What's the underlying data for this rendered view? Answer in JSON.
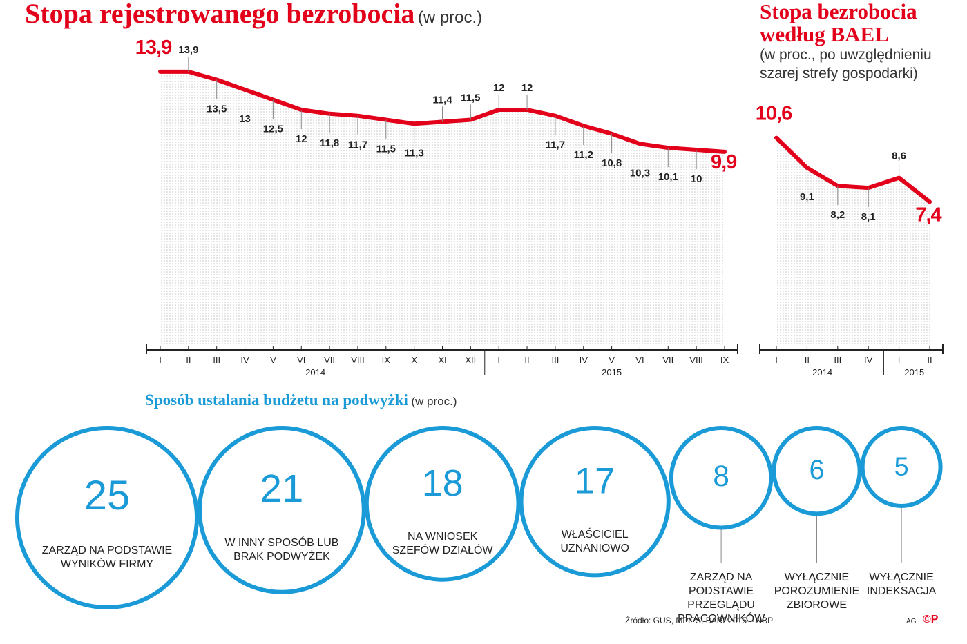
{
  "chart_data": [
    {
      "type": "line",
      "title": "Stopa rejestrowanego bezrobocia",
      "subtitle": "(w proc.)",
      "color": "#e2001a",
      "categories": [
        "I",
        "II",
        "III",
        "IV",
        "V",
        "VI",
        "VII",
        "VIII",
        "IX",
        "X",
        "XI",
        "XII",
        "I",
        "II",
        "III",
        "IV",
        "V",
        "VI",
        "VII",
        "VIII",
        "IX"
      ],
      "category_groups": [
        {
          "label": "2014",
          "size": 12
        },
        {
          "label": "2015",
          "size": 9
        }
      ],
      "values": [
        13.9,
        13.9,
        13.5,
        13,
        12.5,
        12,
        11.8,
        11.7,
        11.5,
        11.3,
        11.4,
        11.5,
        12,
        12,
        11.7,
        11.2,
        10.8,
        10.3,
        10.1,
        10,
        9.9
      ],
      "value_labels": [
        "13,9",
        "13,9",
        "13,5",
        "13",
        "12,5",
        "12",
        "11,8",
        "11,7",
        "11,5",
        "11,3",
        "11,4",
        "11,5",
        "12",
        "12",
        "11,7",
        "11,2",
        "10,8",
        "10,3",
        "10,1",
        "10",
        "9,9"
      ],
      "ylim": [
        0,
        14
      ]
    },
    {
      "type": "line",
      "title": "Stopa bezrobocia według BAEL",
      "subtitle": "(w proc., po uwzględnieniu szarej strefy gospodarki)",
      "color": "#e2001a",
      "categories": [
        "I",
        "II",
        "III",
        "IV",
        "I",
        "II"
      ],
      "category_groups": [
        {
          "label": "2014",
          "size": 4
        },
        {
          "label": "2015",
          "size": 2
        }
      ],
      "values": [
        10.6,
        9.1,
        8.2,
        8.1,
        8.6,
        7.4
      ],
      "value_labels": [
        "10,6",
        "9,1",
        "8,2",
        "8,1",
        "8,6",
        "7,4"
      ],
      "ylim": [
        0,
        14
      ]
    },
    {
      "type": "bubble",
      "title": "Sposób ustalania budżetu na podwyżki",
      "subtitle": "(w proc.)",
      "color": "#1a9ad6",
      "categories": [
        "ZARZĄD NA PODSTAWIE WYNIKÓW FIRMY",
        "W INNY SPOSÓB LUB BRAK PODWYŻEK",
        "NA WNIOSEK SZEFÓW DZIAŁÓW",
        "WŁAŚCICIEL UZNANIOWO",
        "ZARZĄD NA PODSTAWIE PRZEGLĄDU PRACOWNIKÓW",
        "WYŁĄCZNIE POROZUMIENIE ZBIOROWE",
        "WYŁĄCZNIE INDEKSACJA"
      ],
      "values": [
        25,
        21,
        18,
        17,
        8,
        6,
        5
      ]
    }
  ],
  "footer": {
    "source": "Źródło: GUS, MPiPS, BARP2015 – NBP",
    "credit": "AG",
    "logo": "©P"
  }
}
